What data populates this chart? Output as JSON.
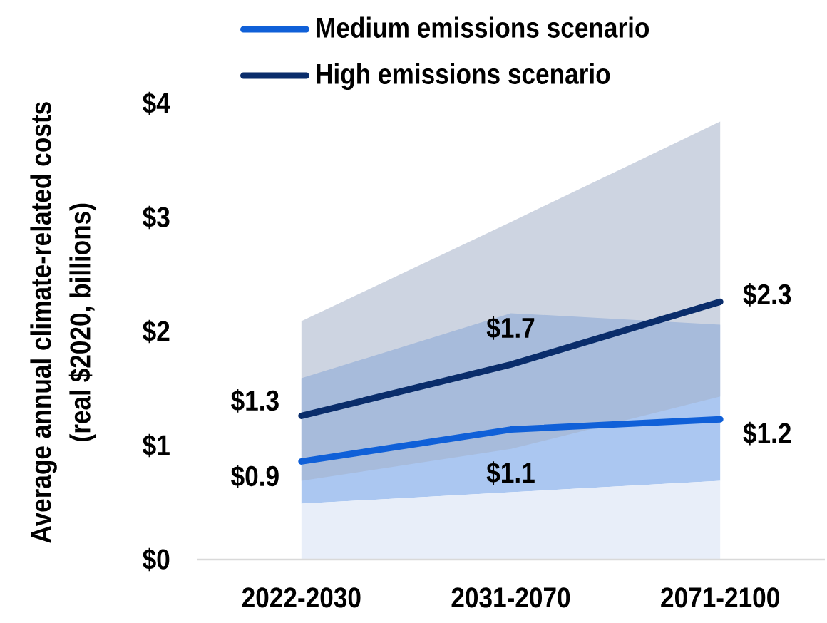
{
  "chart_data": {
    "type": "line",
    "ylabel": "Average annual climate-related costs (real $2020, billions)",
    "categories": [
      "2022-2030",
      "2031-2070",
      "2071-2100"
    ],
    "series": [
      {
        "type": "area",
        "color": "#e8eef9",
        "values": [
          0.49,
          0.59,
          0.69
        ]
      },
      {
        "name": "Medium emissions scenario",
        "color": "#1060d8",
        "values": [
          0.86,
          1.14,
          1.23
        ],
        "lower": [
          0.49,
          0.59,
          0.69
        ],
        "upper": [
          1.59,
          2.16,
          2.06
        ],
        "value_labels": [
          "$0.9",
          "$1.1",
          "$1.2"
        ]
      },
      {
        "name": "High emissions scenario",
        "color": "#0a2d6b",
        "values": [
          1.26,
          1.71,
          2.26
        ],
        "lower": [
          0.69,
          0.97,
          1.43
        ],
        "upper": [
          2.09,
          2.96,
          3.84
        ],
        "value_labels": [
          "$1.3",
          "$1.7",
          "$2.3"
        ]
      }
    ],
    "ylim": [
      0,
      4
    ],
    "yticks": [
      {
        "value": 0,
        "label": "$0"
      },
      {
        "value": 1,
        "label": "$1"
      },
      {
        "value": 2,
        "label": "$2"
      },
      {
        "value": 3,
        "label": "$3"
      },
      {
        "value": 4,
        "label": "$4"
      }
    ],
    "legend": "top"
  }
}
